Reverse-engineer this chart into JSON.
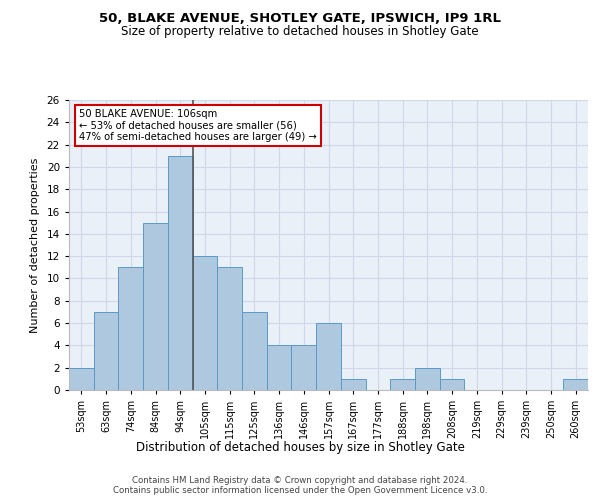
{
  "title1": "50, BLAKE AVENUE, SHOTLEY GATE, IPSWICH, IP9 1RL",
  "title2": "Size of property relative to detached houses in Shotley Gate",
  "xlabel": "Distribution of detached houses by size in Shotley Gate",
  "ylabel": "Number of detached properties",
  "categories": [
    "53sqm",
    "63sqm",
    "74sqm",
    "84sqm",
    "94sqm",
    "105sqm",
    "115sqm",
    "125sqm",
    "136sqm",
    "146sqm",
    "157sqm",
    "167sqm",
    "177sqm",
    "188sqm",
    "198sqm",
    "208sqm",
    "219sqm",
    "229sqm",
    "239sqm",
    "250sqm",
    "260sqm"
  ],
  "values": [
    2,
    7,
    11,
    15,
    21,
    12,
    11,
    7,
    4,
    4,
    6,
    1,
    0,
    1,
    2,
    1,
    0,
    0,
    0,
    0,
    1
  ],
  "bar_color": "#aec8e0",
  "bar_edge_color": "#5a9ac8",
  "annotation_text1": "50 BLAKE AVENUE: 106sqm",
  "annotation_text2": "← 53% of detached houses are smaller (56)",
  "annotation_text3": "47% of semi-detached houses are larger (49) →",
  "annotation_box_color": "#ffffff",
  "annotation_box_edge": "#cc0000",
  "vline_color": "#555555",
  "footer1": "Contains HM Land Registry data © Crown copyright and database right 2024.",
  "footer2": "Contains public sector information licensed under the Open Government Licence v3.0.",
  "ylim": [
    0,
    26
  ],
  "yticks": [
    0,
    2,
    4,
    6,
    8,
    10,
    12,
    14,
    16,
    18,
    20,
    22,
    24,
    26
  ],
  "grid_color": "#d0d8e8",
  "background_color": "#eaf0f8"
}
